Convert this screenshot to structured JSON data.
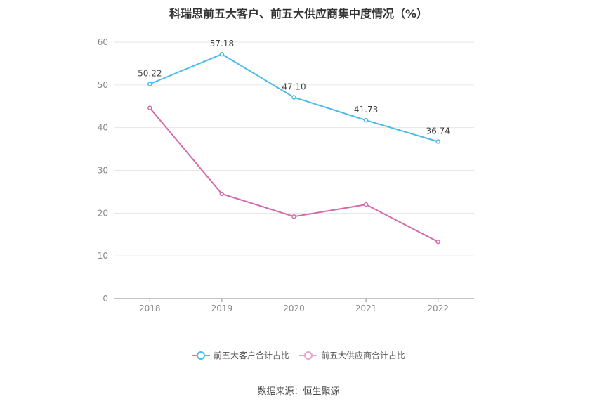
{
  "chart_data": {
    "type": "line",
    "title": "科瑞思前五大客户、前五大供应商集中度情况（%）",
    "categories": [
      "2018",
      "2019",
      "2020",
      "2021",
      "2022"
    ],
    "ylim": [
      0,
      60
    ],
    "yticks": [
      "0",
      "10",
      "20",
      "30",
      "40",
      "50",
      "60"
    ],
    "grid": true,
    "legend_position": "bottom",
    "series": [
      {
        "name": "前五大客户合计占比",
        "color": "#4dbbeb",
        "values": [
          50.22,
          57.18,
          47.1,
          41.73,
          36.74
        ],
        "labels": [
          "50.22",
          "57.18",
          "47.10",
          "41.73",
          "36.74"
        ]
      },
      {
        "name": "前五大供应商合计占比",
        "color": "#d46aae",
        "values": [
          44.6,
          24.5,
          19.2,
          22.0,
          13.3
        ],
        "labels": []
      }
    ]
  },
  "legend_colors": {
    "customers": "#4dbbeb",
    "suppliers": "#e8a3cf"
  },
  "source": "数据来源：恒生聚源"
}
